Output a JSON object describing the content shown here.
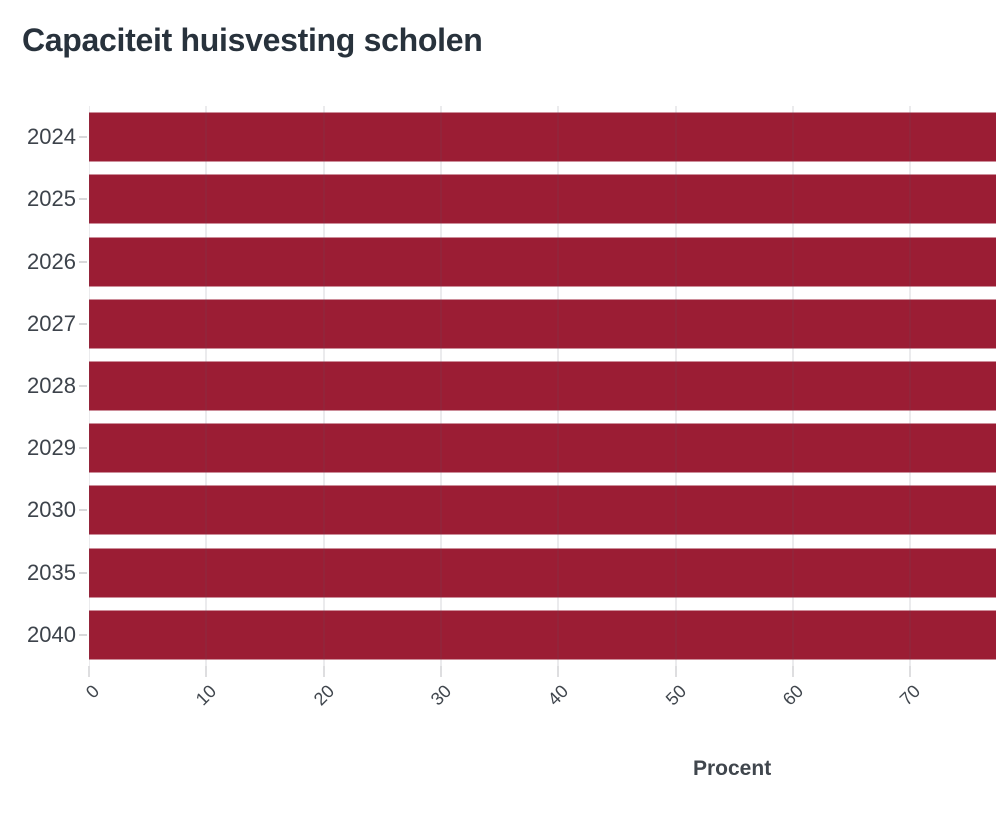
{
  "header": {
    "title": "Capaciteit huisvesting scholen"
  },
  "chart": {
    "x_axis": {
      "label": "Procent",
      "tick_labels": [
        "0",
        "10",
        "20",
        "30",
        "40",
        "50",
        "60",
        "70"
      ]
    },
    "y_axis": {
      "categories": [
        "2024",
        "2025",
        "2026",
        "2027",
        "2028",
        "2029",
        "2030",
        "2035",
        "2040"
      ]
    }
  },
  "chart_data": {
    "type": "bar",
    "orientation": "horizontal",
    "title": "Capaciteit huisvesting scholen",
    "categories": [
      "2024",
      "2025",
      "2026",
      "2027",
      "2028",
      "2029",
      "2030",
      "2035",
      "2040"
    ],
    "values": [
      77.3,
      77.3,
      77.3,
      77.3,
      77.3,
      77.3,
      77.3,
      77.3,
      77.3
    ],
    "values_note": "every bar extends past the right edge of the visible plot area (clipped at ~77.3 on the axis)",
    "xlabel": "Procent",
    "ylabel": "",
    "x_tick_values": [
      0,
      10,
      20,
      30,
      40,
      50,
      60,
      70
    ],
    "xlim_visible": [
      0,
      77.3
    ],
    "grid": "vertical-gridlines-on",
    "legend": "none",
    "bar_color": "#9b1d34"
  },
  "colors": {
    "bar": "#9b1d34",
    "title_text": "#28323c",
    "axis_text": "#40464d",
    "y_label_text": "#3d434b",
    "gridline": "#eaeaec",
    "tick": "#d8d8da",
    "background": "#ffffff"
  }
}
